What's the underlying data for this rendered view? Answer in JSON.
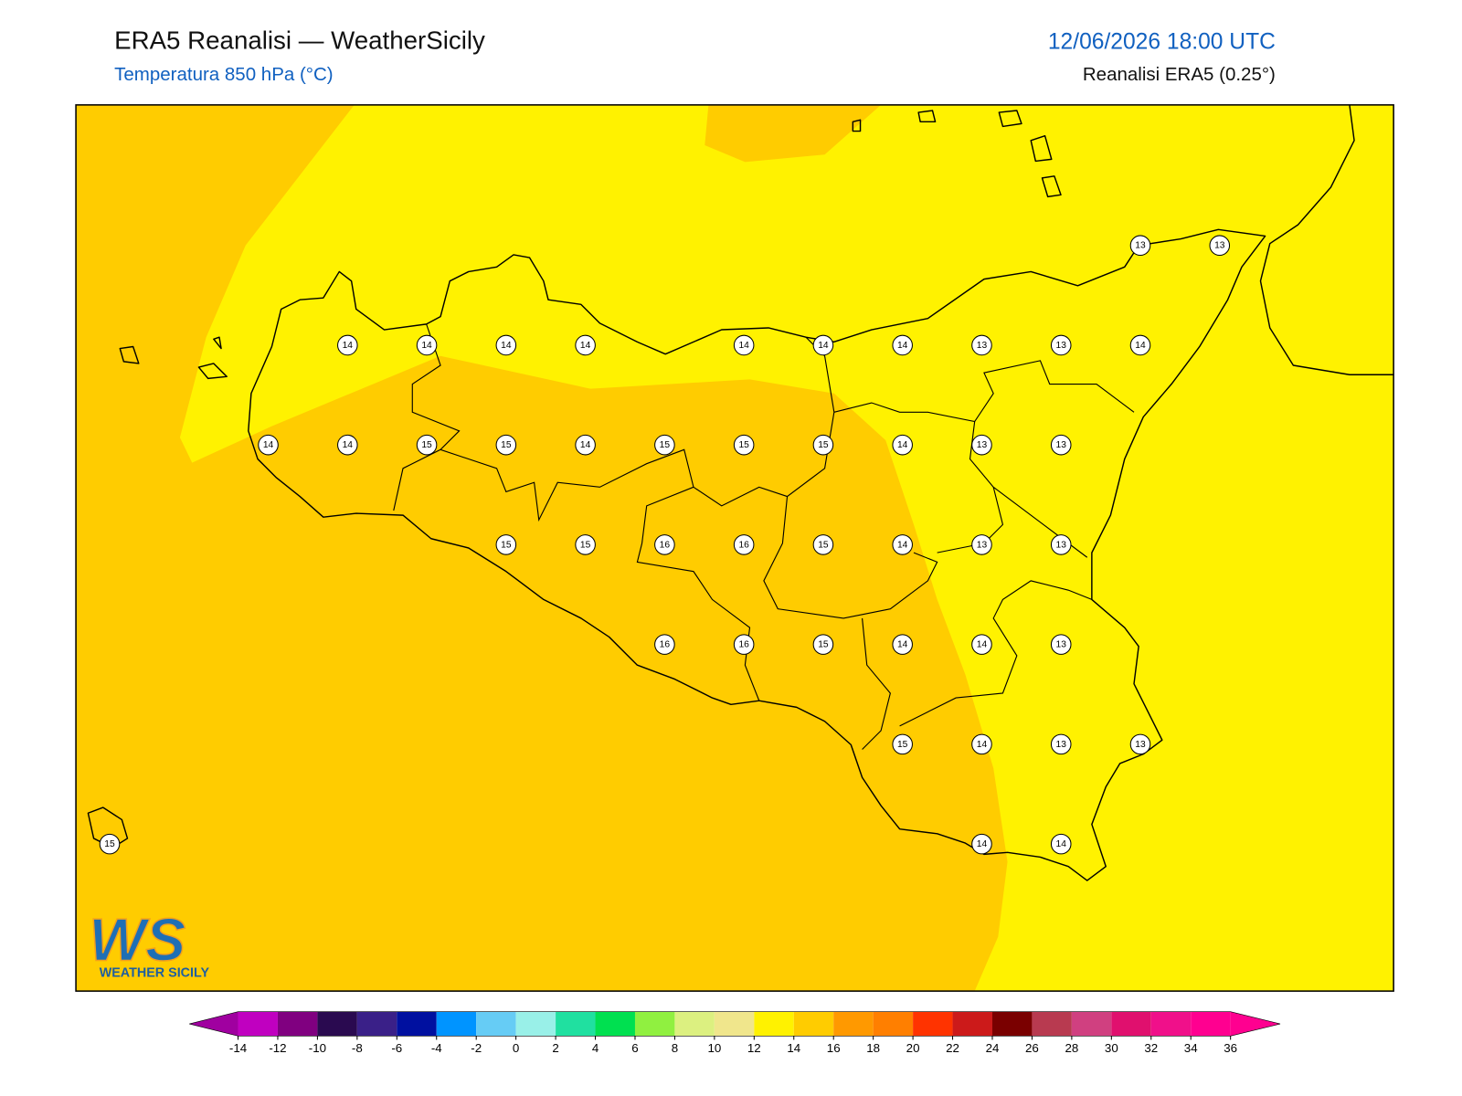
{
  "header": {
    "title": "ERA5 Reanalisi — WeatherSicily",
    "subtitle": "Temperatura 850 hPa (°C)",
    "datetime": "12/06/2026 18:00 UTC",
    "source": "Reanalisi ERA5 (0.25°)"
  },
  "map": {
    "stations": [
      [
        null,
        null,
        null,
        null,
        null,
        null,
        null,
        null,
        null,
        null,
        null,
        null,
        null,
        13,
        13
      ],
      [
        null,
        null,
        null,
        14,
        14,
        14,
        14,
        null,
        14,
        14,
        14,
        13,
        13,
        14,
        null
      ],
      [
        null,
        null,
        14,
        14,
        15,
        15,
        14,
        15,
        15,
        15,
        14,
        13,
        13,
        null,
        null
      ],
      [
        null,
        null,
        null,
        null,
        null,
        15,
        15,
        16,
        16,
        15,
        14,
        13,
        13,
        null,
        null
      ],
      [
        null,
        null,
        null,
        null,
        null,
        null,
        null,
        16,
        16,
        15,
        14,
        14,
        13,
        null,
        null
      ],
      [
        null,
        null,
        null,
        null,
        null,
        null,
        null,
        null,
        null,
        null,
        15,
        14,
        13,
        13,
        null
      ],
      [
        15,
        null,
        null,
        null,
        null,
        null,
        null,
        null,
        null,
        null,
        null,
        14,
        14,
        null,
        null
      ]
    ]
  },
  "colorbar": {
    "levels": [
      -14,
      -12,
      -10,
      -8,
      -6,
      -4,
      -2,
      0,
      2,
      4,
      6,
      8,
      10,
      12,
      14,
      16,
      18,
      20,
      22,
      24,
      26,
      28,
      30,
      32,
      34,
      36
    ],
    "colors": [
      "#c000c0",
      "#800080",
      "#2a0a50",
      "#3a2088",
      "#0010a0",
      "#0094ff",
      "#66ccf5",
      "#99f0e8",
      "#20e0a0",
      "#00e050",
      "#90f040",
      "#dcf080",
      "#f0e68c",
      "#fff200",
      "#ffcc00",
      "#ff9900",
      "#ff7f00",
      "#ff3300",
      "#cc1a1a",
      "#7a0000",
      "#b83a50",
      "#d04080",
      "#e0106e",
      "#f0108a",
      "#ff0090"
    ],
    "under_color": "#a000a0",
    "over_color": "#ff0090"
  },
  "logo": {
    "mark": "WS",
    "name": "WEATHER SICILY"
  }
}
